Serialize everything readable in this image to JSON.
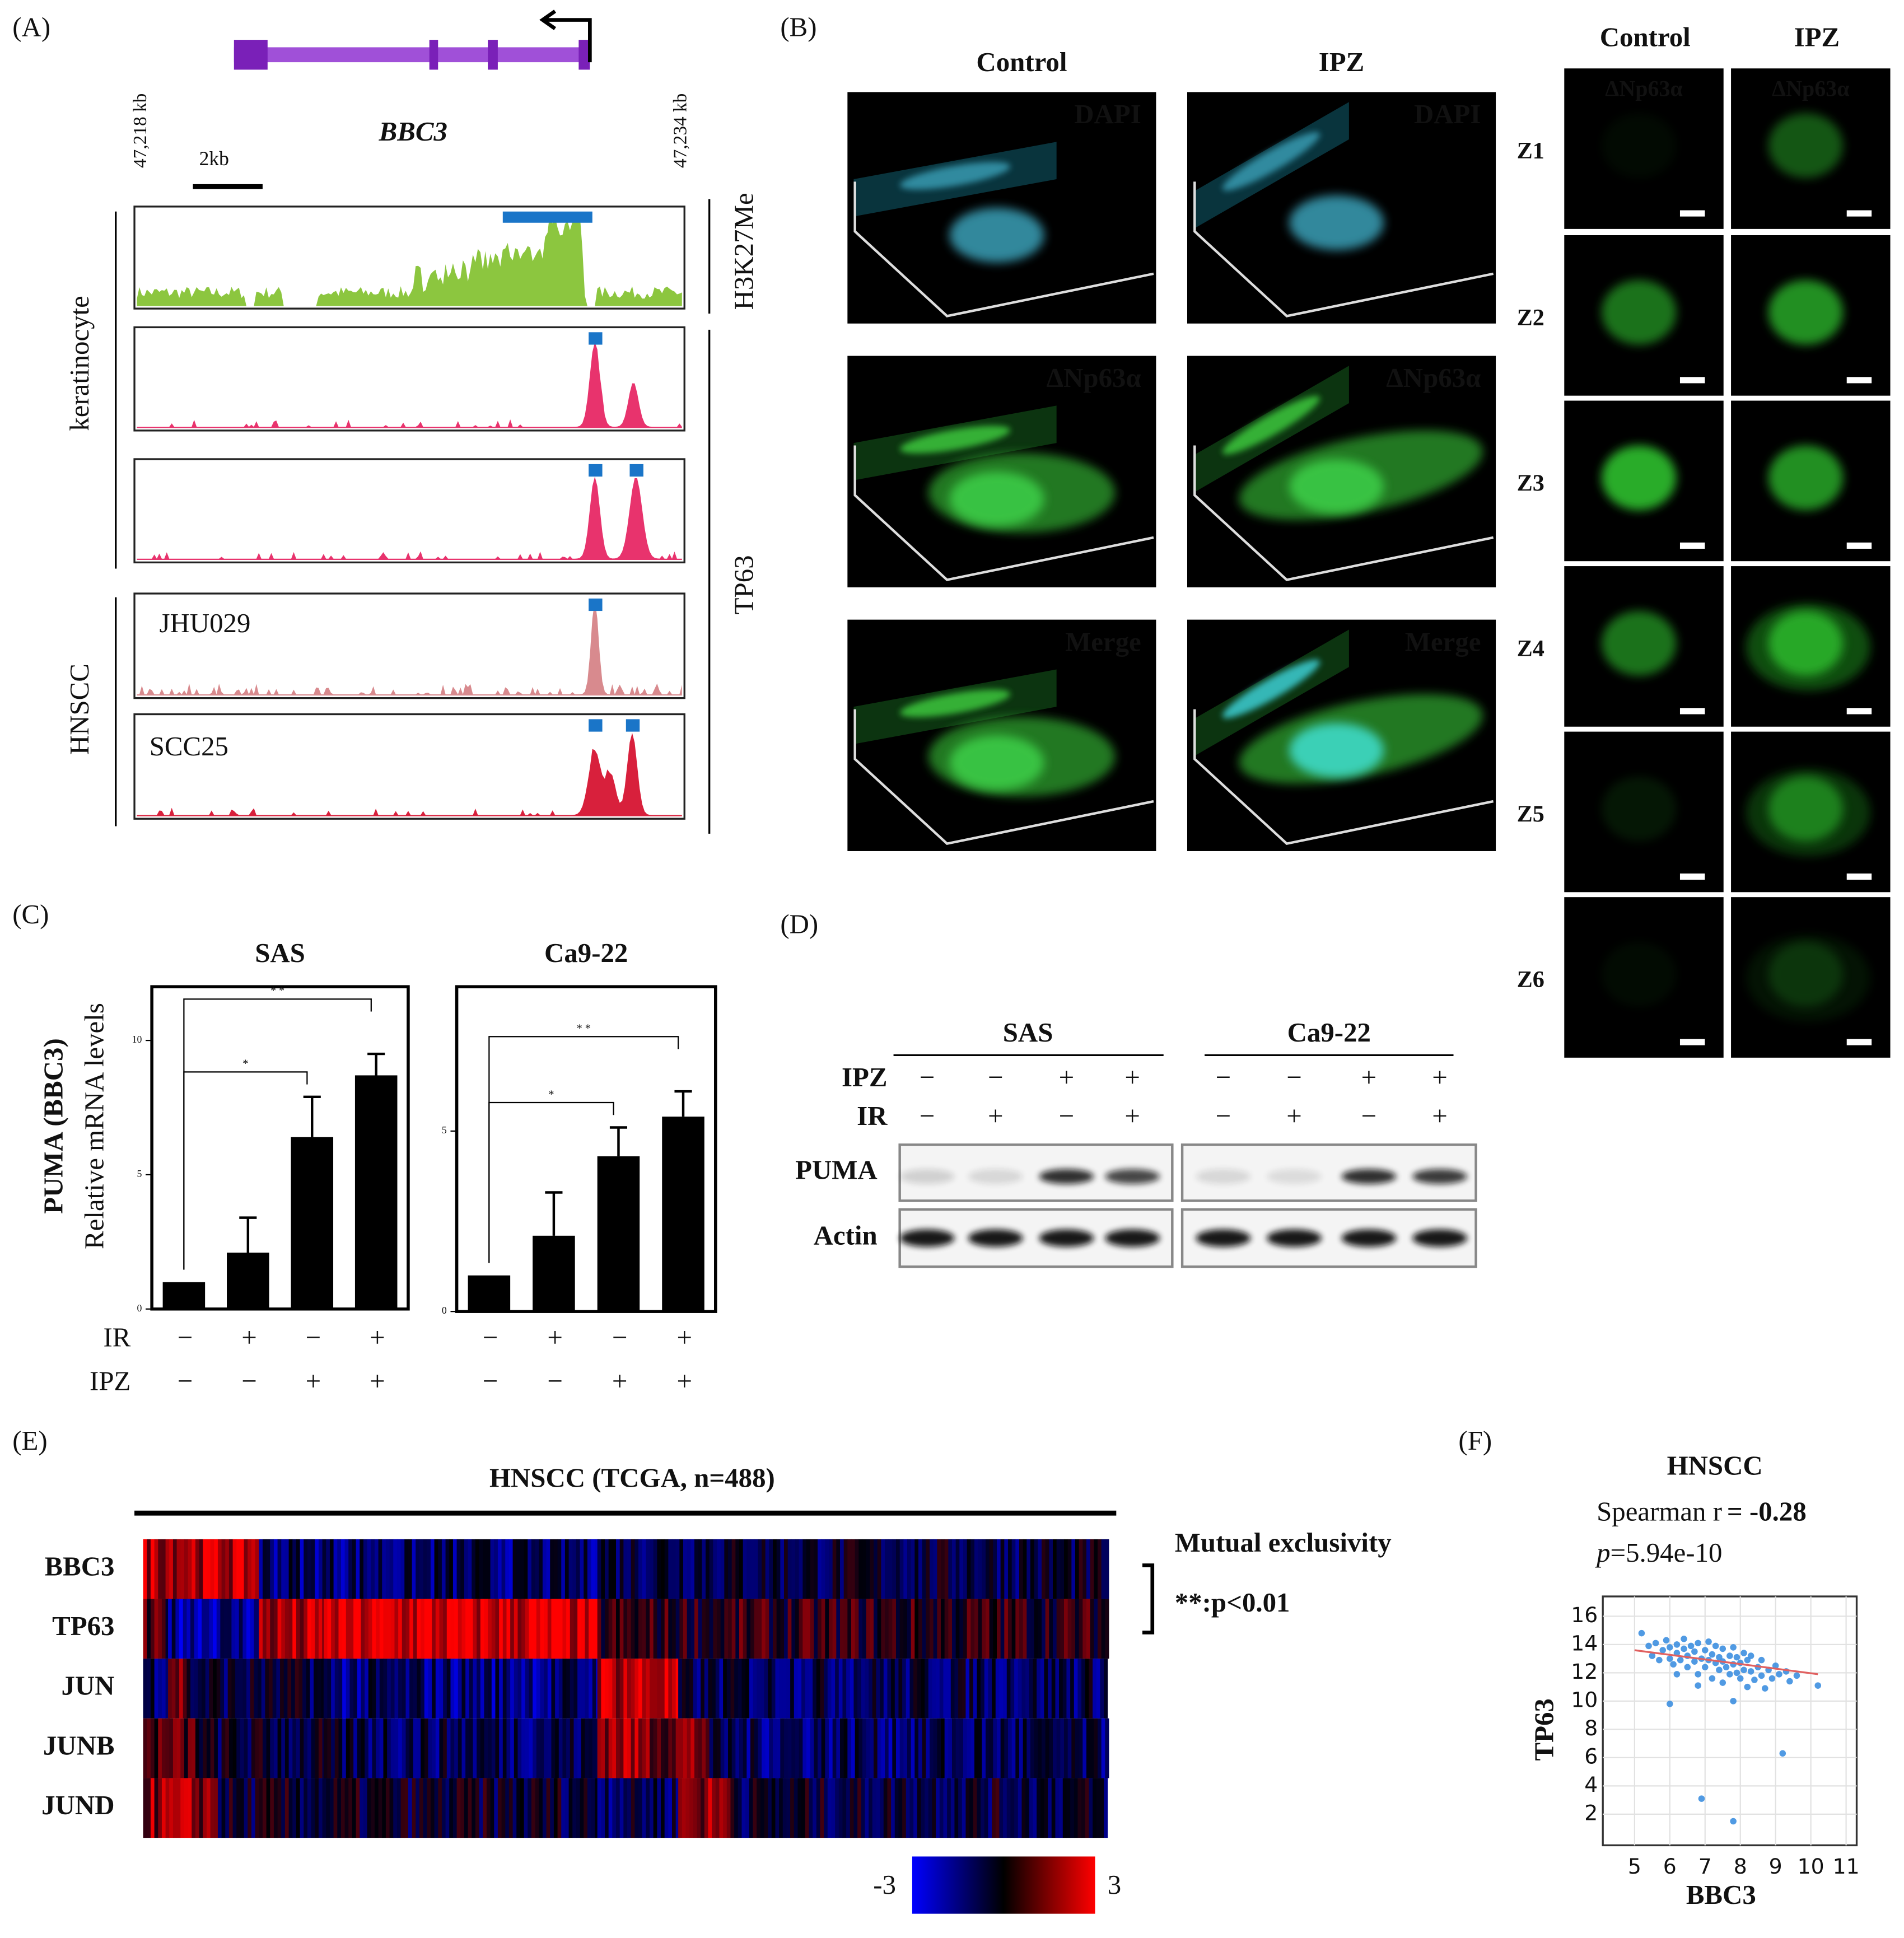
{
  "panel_labels": [
    "(A)",
    "(B)",
    "(C)",
    "(D)",
    "(E)",
    "(F)"
  ],
  "panel_a": {
    "gene": "BBC3",
    "left_coord": "47,218 kb",
    "right_coord": "47,234 kb",
    "scale": "2kb",
    "groups": [
      "keratinocyte",
      "HNSCC"
    ],
    "tracks": [
      "JHU029",
      "SCC25"
    ],
    "marks": [
      "H3K27Me",
      "TP63"
    ]
  },
  "panel_b": {
    "columns": [
      "Control",
      "IPZ"
    ],
    "stains": [
      "DAPI",
      "ΔNp63α",
      "Merge"
    ],
    "z_columns": [
      "Control",
      "IPZ"
    ],
    "z_stain": "ΔNp63α",
    "z_levels": [
      "Z1",
      "Z2",
      "Z3",
      "Z4",
      "Z5",
      "Z6"
    ]
  },
  "panel_d": {
    "groups": [
      "SAS",
      "Ca9-22"
    ],
    "rows": [
      {
        "label": "IPZ",
        "signs": [
          "−",
          "−",
          "+",
          "+",
          "−",
          "−",
          "+",
          "+"
        ]
      },
      {
        "label": "IR",
        "signs": [
          "−",
          "+",
          "−",
          "+",
          "−",
          "+",
          "−",
          "+"
        ]
      }
    ],
    "bands": [
      "PUMA",
      "Actin"
    ]
  },
  "panel_e": {
    "title": "HNSCC (TCGA, n=488)",
    "genes": [
      "BBC3",
      "TP63",
      "JUN",
      "JUNB",
      "JUND"
    ],
    "note": "Mutual exclusivity",
    "significance": "**:p<0.01",
    "colorbar_ticks": [
      -3,
      3
    ]
  },
  "chart_data": [
    {
      "type": "bar",
      "title": "SAS",
      "y_label": "PUMA (BBC3)",
      "y_sublabel": "Relative  mRNA levels",
      "conditions": [
        {
          "label": "IR",
          "signs": [
            "−",
            "+",
            "−",
            "+"
          ]
        },
        {
          "label": "IPZ",
          "signs": [
            "−",
            "−",
            "+",
            "+"
          ]
        }
      ],
      "values": [
        1,
        2.1,
        6.4,
        8.7
      ],
      "errors": [
        0,
        1.3,
        1.5,
        0.8
      ],
      "color": "#000000",
      "ylim": [
        0,
        12
      ],
      "yticks": [
        0,
        5,
        10
      ],
      "brackets": [
        {
          "from": 0,
          "to": 2,
          "label": "*"
        },
        {
          "from": 0,
          "to": 3,
          "label": "* *"
        }
      ]
    },
    {
      "type": "bar",
      "title": "Ca9-22",
      "conditions": [
        {
          "label": "IR",
          "signs": [
            "−",
            "+",
            "−",
            "+"
          ]
        },
        {
          "label": "IPZ",
          "signs": [
            "−",
            "−",
            "+",
            "+"
          ]
        }
      ],
      "values": [
        1,
        2.1,
        4.3,
        5.4
      ],
      "errors": [
        0,
        1.2,
        0.8,
        0.7
      ],
      "color": "#000000",
      "ylim": [
        0,
        9
      ],
      "yticks": [
        0,
        5
      ],
      "brackets": [
        {
          "from": 0,
          "to": 2,
          "label": "*"
        },
        {
          "from": 0,
          "to": 3,
          "label": "* *"
        }
      ]
    },
    {
      "type": "scatter",
      "title": "HNSCC",
      "stat": "Spearman r",
      "r_text": "= -0.28",
      "p_symbol": "p",
      "p_text": "=5.94e-10",
      "x_label": "BBC3",
      "y_label": "TP63",
      "color": "#3d8fe0",
      "x": [
        5.2,
        5.4,
        5.5,
        5.6,
        5.7,
        5.8,
        5.9,
        6.0,
        6.0,
        6.1,
        6.2,
        6.2,
        6.3,
        6.4,
        6.4,
        6.5,
        6.5,
        6.6,
        6.7,
        6.7,
        6.8,
        6.8,
        6.9,
        7.0,
        7.0,
        7.1,
        7.1,
        7.2,
        7.2,
        7.3,
        7.3,
        7.4,
        7.4,
        7.5,
        7.5,
        7.5,
        7.6,
        7.7,
        7.7,
        7.8,
        7.8,
        7.9,
        7.9,
        8.0,
        8.0,
        8.1,
        8.1,
        8.2,
        8.2,
        8.3,
        8.3,
        8.4,
        8.5,
        8.6,
        8.6,
        8.7,
        8.8,
        8.9,
        9.0,
        9.1,
        9.3,
        9.4,
        9.6,
        10.2,
        6.0,
        7.8,
        9.2,
        6.9,
        7.8,
        6.2,
        6.8
      ],
      "y": [
        14.8,
        13.9,
        13.2,
        14.1,
        12.9,
        13.6,
        14.3,
        13.0,
        13.8,
        12.6,
        14.0,
        13.4,
        12.9,
        13.7,
        14.4,
        12.4,
        13.2,
        13.9,
        12.8,
        13.5,
        11.9,
        14.1,
        13.0,
        12.4,
        13.6,
        12.9,
        14.2,
        11.6,
        13.3,
        12.7,
        13.9,
        12.2,
        13.1,
        11.3,
        12.8,
        13.7,
        12.4,
        13.2,
        11.9,
        12.6,
        13.8,
        12.0,
        13.1,
        11.6,
        12.7,
        13.4,
        12.2,
        11.0,
        12.9,
        12.1,
        13.2,
        11.5,
        12.4,
        12.9,
        11.8,
        10.9,
        12.2,
        11.6,
        12.5,
        11.9,
        12.1,
        11.4,
        11.8,
        11.1,
        9.8,
        10.0,
        6.3,
        3.1,
        1.5,
        11.9,
        11.1
      ],
      "trend": {
        "x": [
          5,
          10.2
        ],
        "y": [
          13.6,
          11.9
        ],
        "color": "#e06060"
      },
      "xlim": [
        4.1,
        11.3
      ],
      "ylim": [
        -0.2,
        17.4
      ],
      "xticks": [
        5,
        6,
        7,
        8,
        9,
        10,
        11
      ],
      "yticks": [
        2,
        4,
        6,
        8,
        10,
        12,
        14,
        16
      ],
      "grid": true
    }
  ]
}
